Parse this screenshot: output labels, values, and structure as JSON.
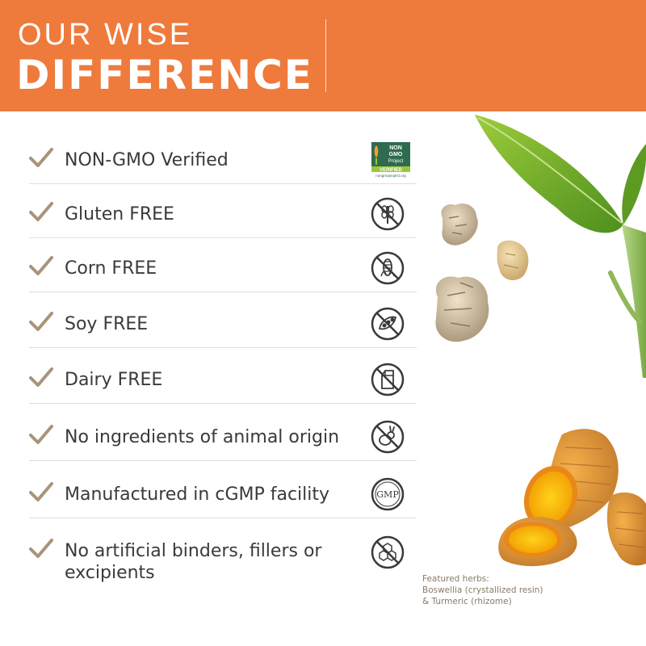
{
  "header": {
    "line1": "OUR WISE",
    "line2": "DIFFERENCE"
  },
  "features": [
    {
      "label": "NON-GMO Verified",
      "icon": "non-gmo-verified-icon"
    },
    {
      "label": "Gluten FREE",
      "icon": "gluten-free-icon"
    },
    {
      "label": "Corn FREE",
      "icon": "corn-free-icon"
    },
    {
      "label": "Soy FREE",
      "icon": "soy-free-icon"
    },
    {
      "label": "Dairy FREE",
      "icon": "dairy-free-icon"
    },
    {
      "label": "No ingredients of animal origin",
      "icon": "no-animal-icon"
    },
    {
      "label": "Manufactured in cGMP facility",
      "icon": "gmp-icon"
    },
    {
      "label": "No artificial binders, fillers or\nexcipients",
      "icon": "no-chemicals-icon"
    }
  ],
  "non_gmo_badge": {
    "line1": "NON",
    "line2": "GMO",
    "line3": "Project",
    "verified": "VERIFIED",
    "url": "nongmoproject.org"
  },
  "gmp_badge_text": "GMP",
  "caption": {
    "line1": "Featured herbs:",
    "line2": "Boswellia (crystallized resin)",
    "line3": "& Turmeric (rhizome)"
  },
  "colors": {
    "header_bg": "#ee7a3c",
    "check": "#a89478",
    "text": "#3a3a3a"
  }
}
